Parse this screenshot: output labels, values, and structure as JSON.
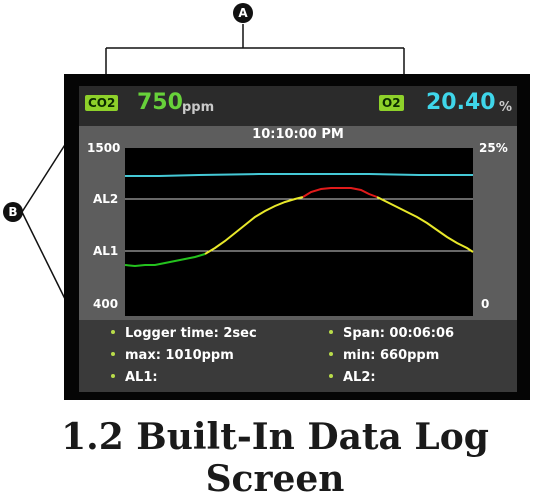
{
  "callouts": {
    "a": "A",
    "b": "B"
  },
  "top_bar": {
    "co2": {
      "tag": "CO2",
      "value": "750",
      "unit": "ppm"
    },
    "o2": {
      "tag": "O2",
      "value": "20.40",
      "unit": "%"
    }
  },
  "chart": {
    "time": "10:10:00 PM",
    "left_axis": {
      "top": "1500",
      "al2": "AL2",
      "al1": "AL1",
      "bottom": "400"
    },
    "right_axis": {
      "top": "25%",
      "bottom": "0"
    }
  },
  "info": {
    "logger_time": "Logger time: 2sec",
    "span": "Span: 00:06:06",
    "max": "max: 1010ppm",
    "min": "min: 660ppm",
    "al1": "AL1:",
    "al2": "AL2:"
  },
  "caption": "1.2 Built-In Data Log Screen",
  "colors": {
    "tag_green": "#8ed12a",
    "co2_value": "#67d13a",
    "o2_value": "#3fd6ea",
    "trace_green": "#24c21e",
    "trace_yellow": "#e8e82a",
    "trace_red": "#e01b1b",
    "trace_cyan": "#45c9d6"
  }
}
